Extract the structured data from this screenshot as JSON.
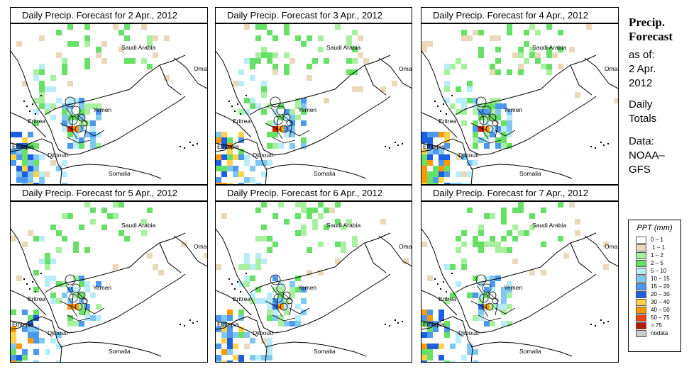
{
  "panels": [
    {
      "title": "Daily Precip. Forecast for  2 Apr., 2012",
      "seed": 11,
      "intensity": 1.0,
      "peak": "#cc2200"
    },
    {
      "title": "Daily Precip. Forecast for  3 Apr., 2012",
      "seed": 23,
      "intensity": 0.8,
      "peak": "#cc2200"
    },
    {
      "title": "Daily Precip. Forecast for  4 Apr., 2012",
      "seed": 37,
      "intensity": 1.1,
      "peak": "#cc2200"
    },
    {
      "title": "Daily Precip. Forecast for  5 Apr., 2012",
      "seed": 41,
      "intensity": 0.7,
      "peak": "#ff8800"
    },
    {
      "title": "Daily Precip. Forecast for  6 Apr., 2012",
      "seed": 53,
      "intensity": 0.85,
      "peak": "#2f6fe0"
    },
    {
      "title": "Daily Precip. Forecast for  7 Apr., 2012",
      "seed": 67,
      "intensity": 0.75,
      "peak": "#2f6fe0"
    }
  ],
  "map_labels": {
    "saudi": "Saudi Arabia",
    "oman": "Oman",
    "yemen": "Yemen",
    "eritrea": "Eritrea",
    "ethiopia": "Ethiopia",
    "djibouti": "Djibouti",
    "somalia": "Somalia"
  },
  "side": {
    "title_line1": "Precip.",
    "title_line2": "Forecast",
    "asof": "as of:",
    "date_line1": "2 Apr.",
    "date_line2": "2012",
    "daily_line1": "Daily",
    "daily_line2": "Totals",
    "data_line1": "Data:",
    "data_line2": "NOAA–",
    "data_line3": "GFS"
  },
  "legend": {
    "title": "PPT (mm)",
    "items": [
      {
        "label": "0 – 1",
        "color": "#ffffff"
      },
      {
        "label": ".1 – 1",
        "color": "#ead8bb"
      },
      {
        "label": "1 – 2",
        "color": "#a8f0a0"
      },
      {
        "label": "2 – 5",
        "color": "#66e066"
      },
      {
        "label": "5 – 10",
        "color": "#b8ecf8"
      },
      {
        "label": "10 – 15",
        "color": "#80c8f4"
      },
      {
        "label": "15 – 20",
        "color": "#4c98ee"
      },
      {
        "label": "20 – 30",
        "color": "#1c5fe0"
      },
      {
        "label": "30 – 40",
        "color": "#ffd24a"
      },
      {
        "label": "40 – 50",
        "color": "#ff9900"
      },
      {
        "label": "50 – 75",
        "color": "#ee4400"
      },
      {
        "label": "> 75",
        "color": "#b81c00"
      },
      {
        "label": "nodata",
        "color": "#cccccc"
      }
    ]
  }
}
